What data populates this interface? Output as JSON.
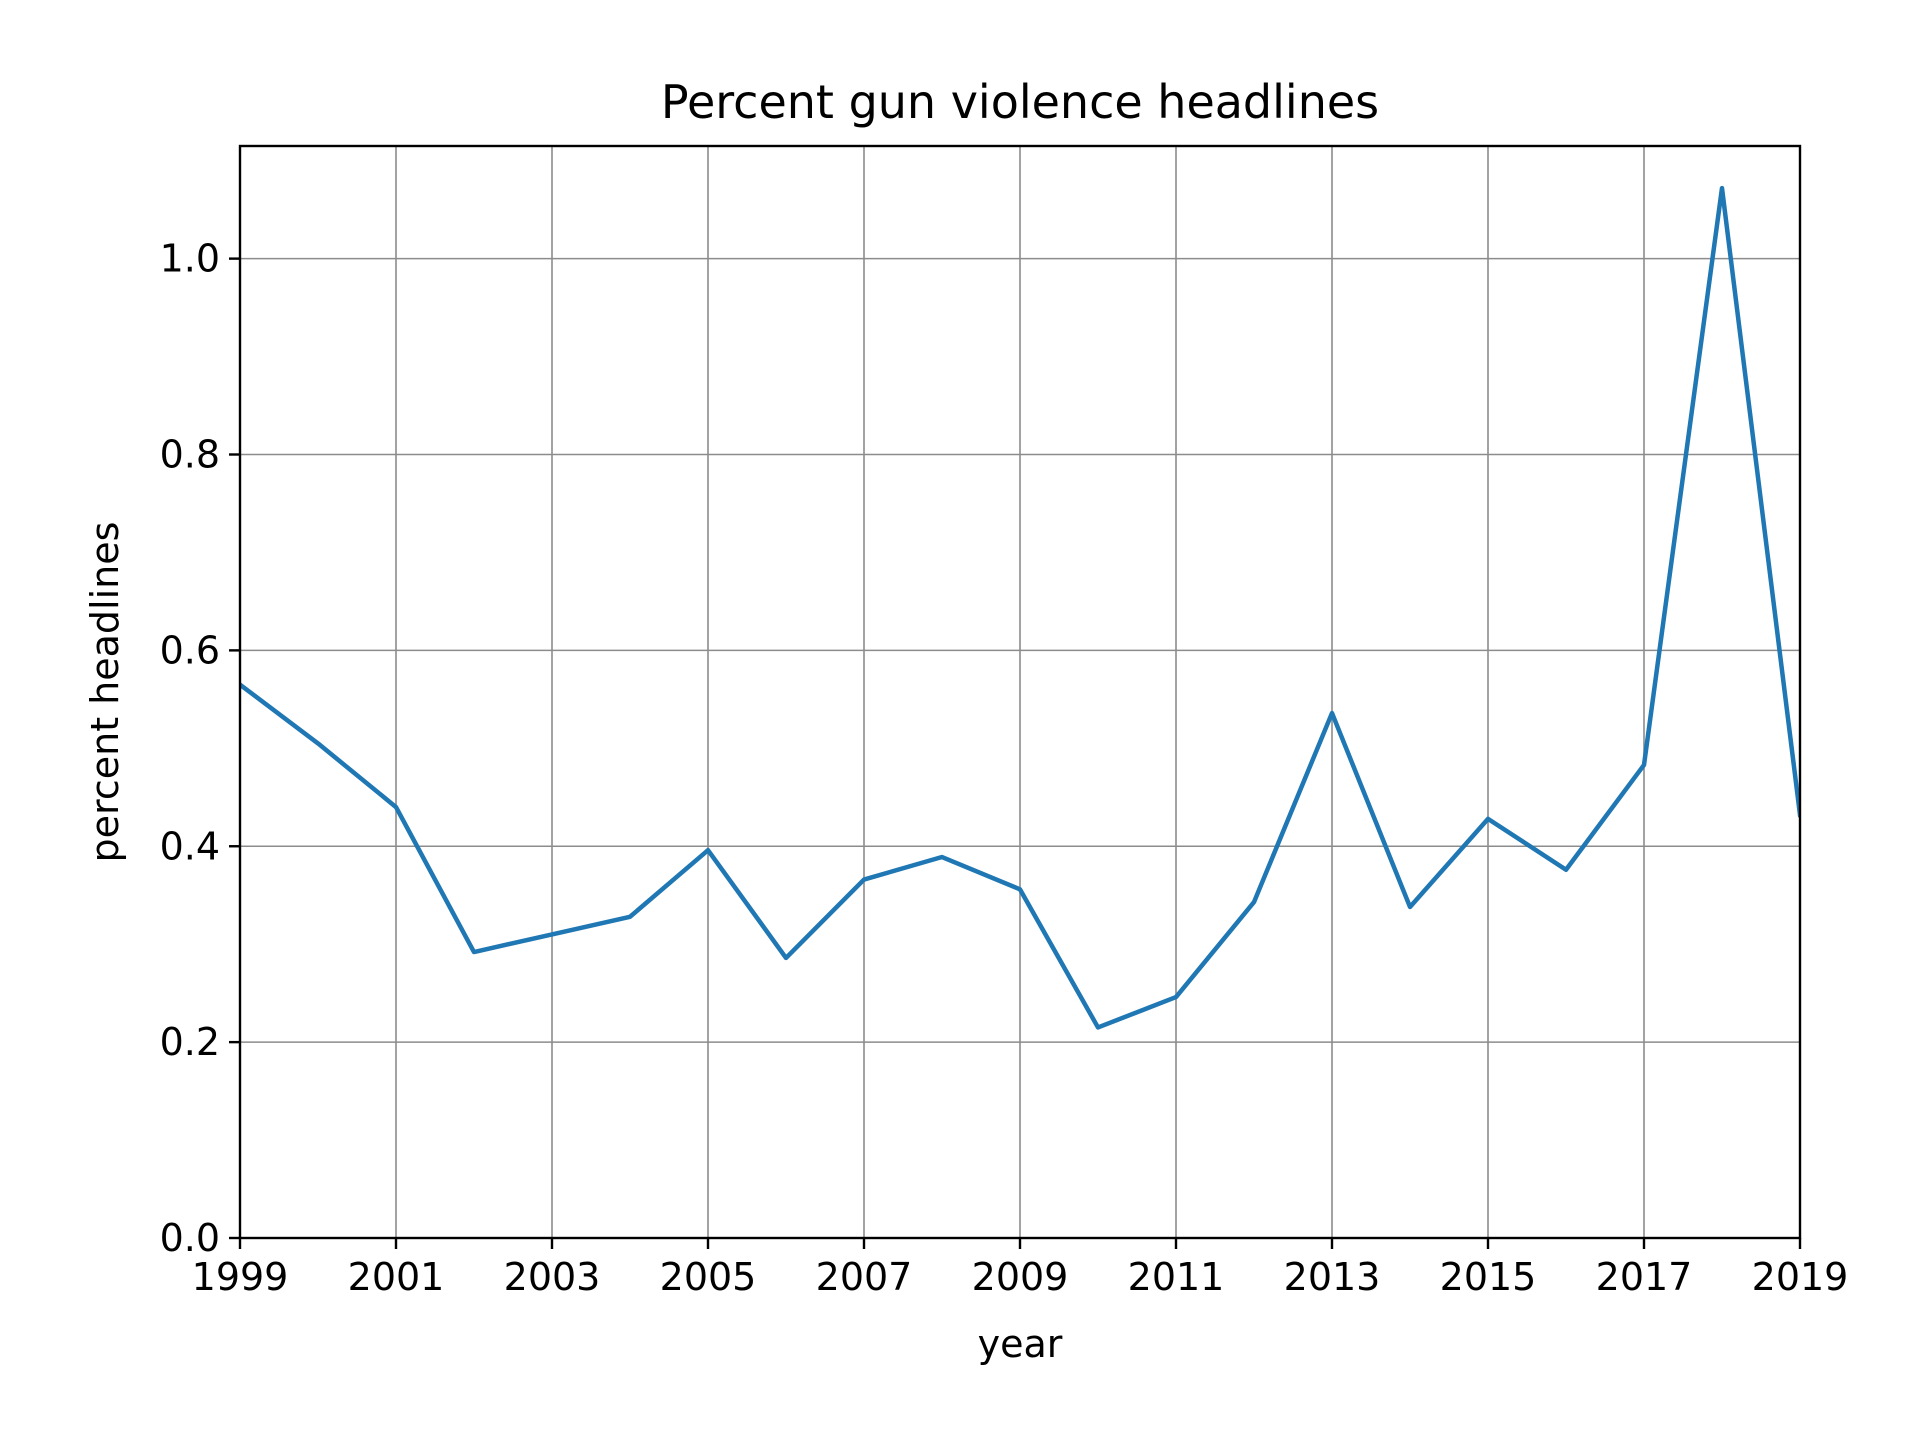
{
  "chart_data": {
    "type": "line",
    "title": "Percent gun violence headlines",
    "xlabel": "year",
    "ylabel": "percent headlines",
    "xlim": [
      1999,
      2019
    ],
    "ylim": [
      0,
      1.115
    ],
    "x_ticks": [
      1999,
      2001,
      2003,
      2005,
      2007,
      2009,
      2011,
      2013,
      2015,
      2017,
      2019
    ],
    "x_tick_labels": [
      "1999",
      "2001",
      "2003",
      "2005",
      "2007",
      "2009",
      "2011",
      "2013",
      "2015",
      "2017",
      "2019"
    ],
    "y_ticks": [
      0.0,
      0.2,
      0.4,
      0.6,
      0.8,
      1.0
    ],
    "y_tick_labels": [
      "0.0",
      "0.2",
      "0.4",
      "0.6",
      "0.8",
      "1.0"
    ],
    "grid": true,
    "legend": "none",
    "series": [
      {
        "color": "#1f77b4",
        "x": [
          1999,
          2000,
          2001,
          2002,
          2003,
          2004,
          2005,
          2006,
          2007,
          2008,
          2009,
          2010,
          2011,
          2012,
          2013,
          2014,
          2015,
          2016,
          2017,
          2018,
          2019
        ],
        "values": [
          0.565,
          0.505,
          0.44,
          0.292,
          0.31,
          0.328,
          0.396,
          0.286,
          0.366,
          0.389,
          0.356,
          0.215,
          0.246,
          0.343,
          0.536,
          0.338,
          0.428,
          0.376,
          0.483,
          1.072,
          0.432
        ]
      }
    ],
    "colors": {
      "line": "#1f77b4",
      "grid": "#8c8c8c",
      "axes": "#000000"
    }
  }
}
